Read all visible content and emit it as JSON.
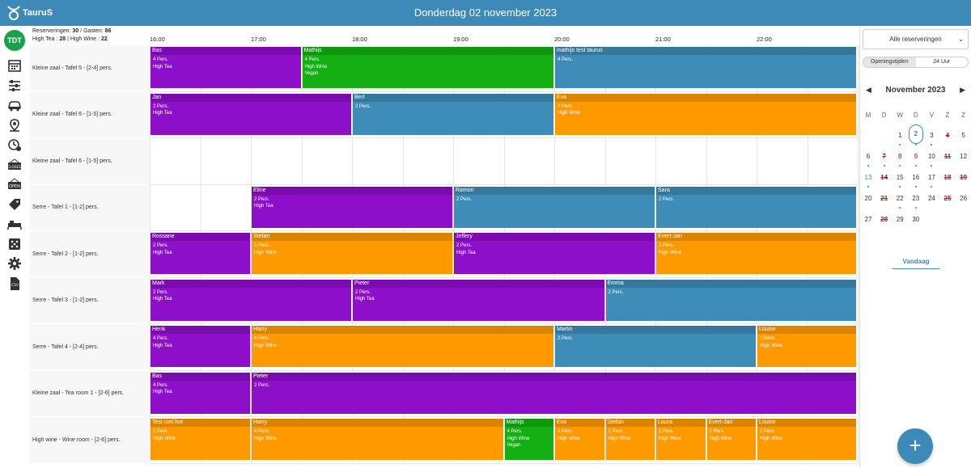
{
  "header": {
    "title": "Donderdag 02 november 2023",
    "logo": "TauruS"
  },
  "user": {
    "initials": "TDT"
  },
  "nav": [
    {
      "name": "calendar-icon"
    },
    {
      "name": "sliders-icon"
    },
    {
      "name": "car-icon"
    },
    {
      "name": "map-pin-icon"
    },
    {
      "name": "clock-plus-icon"
    },
    {
      "name": "closed-sign-icon"
    },
    {
      "name": "open-sign-icon"
    },
    {
      "name": "tag-icon"
    },
    {
      "name": "bed-icon"
    },
    {
      "name": "dice-icon"
    },
    {
      "name": "gear-icon"
    },
    {
      "name": "csv-file-icon"
    }
  ],
  "summary": {
    "res_label": "Reserveringen:",
    "res_count": "30",
    "sep": "/",
    "guests_label": "Gasten:",
    "guests_count": "86",
    "tea_label": "High Tea :",
    "tea_count": "28",
    "pipe": "|",
    "wine_label": "High Wine :",
    "wine_count": "22"
  },
  "times": [
    "16:00",
    "17:00",
    "18:00",
    "19:00",
    "20:00",
    "21:00",
    "22:00"
  ],
  "rows": [
    "Kleine zaal - Tafel 5 - [2-4] pers.",
    "Kleine zaal - Tafel 6 - [1-5] pers.",
    "Kleine zaal - Tafel 6 - [1-5] pers.",
    "Serre - Tafel 1 - [1-2] pers.",
    "Serre - Tafel 2 - [1-2] pers.",
    "Serre - Tafel 3 - [1-2] pers.",
    "Serre - Tafel 4 - [2-4] pers.",
    "Kleine zaal - Tea room 1 - [2-6] pers.",
    "High wine - Wine room - [2-6] pers."
  ],
  "colors": {
    "purple": "#8e0fca",
    "green": "#13af13",
    "blue": "#3e8cb8",
    "orange": "#fe9a00"
  },
  "reservations": [
    {
      "row": 0,
      "start": "16:00",
      "end": "17:30",
      "name": "Bas",
      "lines": [
        "4 Pers.",
        "High Tea"
      ],
      "color": "purple"
    },
    {
      "row": 0,
      "start": "17:30",
      "end": "20:00",
      "name": "Mathijs",
      "lines": [
        "4 Pers.",
        "High Wine",
        "Vegan"
      ],
      "color": "green"
    },
    {
      "row": 0,
      "start": "20:00",
      "end": "23:00",
      "name": "mathijs test taurus",
      "lines": [
        "4 Pers."
      ],
      "color": "blue"
    },
    {
      "row": 1,
      "start": "16:00",
      "end": "18:00",
      "name": "Jan",
      "lines": [
        "2 Pers.",
        "High Tea"
      ],
      "color": "purple"
    },
    {
      "row": 1,
      "start": "18:00",
      "end": "20:00",
      "name": "Bert",
      "lines": [
        "2 Pers."
      ],
      "color": "blue"
    },
    {
      "row": 1,
      "start": "20:00",
      "end": "23:00",
      "name": "Eva",
      "lines": [
        "4 Pers.",
        "High Wine"
      ],
      "color": "orange"
    },
    {
      "row": 3,
      "start": "17:00",
      "end": "19:00",
      "name": "Eline",
      "lines": [
        "2 Pers.",
        "High Tea"
      ],
      "color": "purple"
    },
    {
      "row": 3,
      "start": "19:00",
      "end": "21:00",
      "name": "Ramon",
      "lines": [
        "2 Pers."
      ],
      "color": "blue"
    },
    {
      "row": 3,
      "start": "21:00",
      "end": "23:00",
      "name": "Sara",
      "lines": [
        "2 Pers."
      ],
      "color": "blue"
    },
    {
      "row": 4,
      "start": "16:00",
      "end": "17:00",
      "name": "Rossane",
      "lines": [
        "2 Pers.",
        "High Tea"
      ],
      "color": "purple"
    },
    {
      "row": 4,
      "start": "17:00",
      "end": "19:00",
      "name": "Stefan",
      "lines": [
        "2 Pers.",
        "High Wine"
      ],
      "color": "orange"
    },
    {
      "row": 4,
      "start": "19:00",
      "end": "21:00",
      "name": "Jeffery",
      "lines": [
        "2 Pers.",
        "High Tea"
      ],
      "color": "purple"
    },
    {
      "row": 4,
      "start": "21:00",
      "end": "23:00",
      "name": "Evert-Jan",
      "lines": [
        "2 Pers.",
        "High Wine"
      ],
      "color": "orange"
    },
    {
      "row": 5,
      "start": "16:00",
      "end": "18:00",
      "name": "Mark",
      "lines": [
        "2 Pers.",
        "High Tea"
      ],
      "color": "purple"
    },
    {
      "row": 5,
      "start": "18:00",
      "end": "20:30",
      "name": "Pieter",
      "lines": [
        "2 Pers.",
        "High Tea"
      ],
      "color": "purple"
    },
    {
      "row": 5,
      "start": "20:30",
      "end": "23:00",
      "name": "Emma",
      "lines": [
        "2 Pers."
      ],
      "color": "blue"
    },
    {
      "row": 6,
      "start": "16:00",
      "end": "17:00",
      "name": "Henk",
      "lines": [
        "4 Pers.",
        "High Tea"
      ],
      "color": "purple"
    },
    {
      "row": 6,
      "start": "17:00",
      "end": "20:00",
      "name": "Harry",
      "lines": [
        "4 Pers.",
        "High Wine"
      ],
      "color": "orange"
    },
    {
      "row": 6,
      "start": "20:00",
      "end": "22:00",
      "name": "Martin",
      "lines": [
        "2 Pers."
      ],
      "color": "blue"
    },
    {
      "row": 6,
      "start": "22:00",
      "end": "23:00",
      "name": "Louise",
      "lines": [
        "2 Pers.",
        "High Wine"
      ],
      "color": "orange"
    },
    {
      "row": 7,
      "start": "16:00",
      "end": "17:00",
      "name": "Bas",
      "lines": [
        "4 Pers.",
        "High Tea"
      ],
      "color": "purple"
    },
    {
      "row": 7,
      "start": "17:00",
      "end": "23:00",
      "name": "Pieter",
      "lines": [
        "2 Pers."
      ],
      "color": "purple"
    },
    {
      "row": 8,
      "start": "16:00",
      "end": "17:00",
      "name": "Test niet live",
      "lines": [
        "2 Pers.",
        "High Wine"
      ],
      "color": "orange"
    },
    {
      "row": 8,
      "start": "17:00",
      "end": "19:30",
      "name": "Harry",
      "lines": [
        "4 Pers.",
        "High Wine"
      ],
      "color": "orange"
    },
    {
      "row": 8,
      "start": "19:30",
      "end": "20:00",
      "name": "Mathijs",
      "lines": [
        "4 Pers.",
        "High Wine",
        "Vegan"
      ],
      "color": "green"
    },
    {
      "row": 8,
      "start": "20:00",
      "end": "20:30",
      "name": "Eva",
      "lines": [
        "4 Pers.",
        "High Wine"
      ],
      "color": "orange"
    },
    {
      "row": 8,
      "start": "20:30",
      "end": "21:00",
      "name": "Stefan",
      "lines": [
        "2 Pers.",
        "High Wine"
      ],
      "color": "orange"
    },
    {
      "row": 8,
      "start": "21:00",
      "end": "21:30",
      "name": "Laura",
      "lines": [
        "2 Pers.",
        "High Wine"
      ],
      "color": "orange"
    },
    {
      "row": 8,
      "start": "21:30",
      "end": "22:00",
      "name": "Evert-Jan",
      "lines": [
        "2 Pers.",
        "High Wine"
      ],
      "color": "orange"
    },
    {
      "row": 8,
      "start": "22:00",
      "end": "23:00",
      "name": "Louise",
      "lines": [
        "2 Pers.",
        "High Wine"
      ],
      "color": "orange"
    }
  ],
  "sidebar": {
    "filter": "Alle reserveringen",
    "toggle": [
      "Openingstijden",
      "24 Uur"
    ],
    "month": "November 2023",
    "weekdays": [
      "M",
      "D",
      "W",
      "D",
      "V",
      "Z",
      "Z"
    ],
    "days": [
      {
        "d": "1",
        "dot": true
      },
      {
        "d": "2",
        "dot": true,
        "sel": true
      },
      {
        "d": "3",
        "dot": true
      },
      {
        "d": "4",
        "strike": true
      },
      {
        "d": "5"
      },
      {
        "d": "6",
        "dot": true
      },
      {
        "d": "7",
        "strike": true,
        "dot": true
      },
      {
        "d": "8",
        "dot": true
      },
      {
        "d": "9",
        "dot": true
      },
      {
        "d": "10",
        "dot": true
      },
      {
        "d": "11",
        "strike": true
      },
      {
        "d": "12"
      },
      {
        "d": "13",
        "today": true,
        "dot": true
      },
      {
        "d": "14",
        "strike": true
      },
      {
        "d": "15",
        "dot": true
      },
      {
        "d": "16",
        "dot": true
      },
      {
        "d": "17",
        "dot": true
      },
      {
        "d": "18",
        "strike": true
      },
      {
        "d": "19",
        "strike": true
      },
      {
        "d": "20"
      },
      {
        "d": "21",
        "strike": true
      },
      {
        "d": "22",
        "dot": true
      },
      {
        "d": "23",
        "dot": true
      },
      {
        "d": "24"
      },
      {
        "d": "25",
        "strike": true
      },
      {
        "d": "26"
      },
      {
        "d": "27"
      },
      {
        "d": "28",
        "strike": true
      },
      {
        "d": "29"
      },
      {
        "d": "30"
      }
    ],
    "today_label": "Vandaag"
  },
  "fab_label": "+"
}
